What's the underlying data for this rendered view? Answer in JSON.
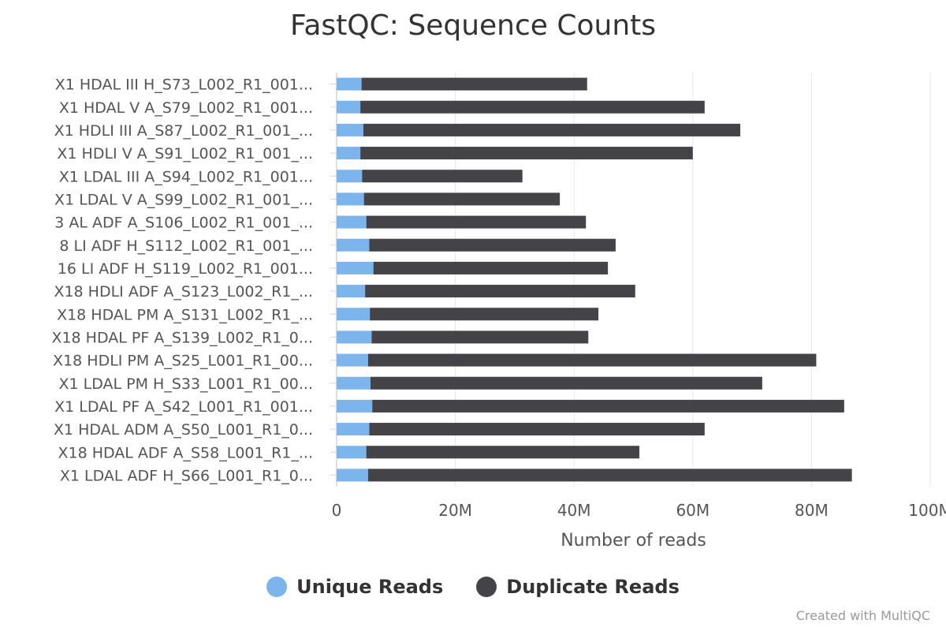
{
  "title": "FastQC: Sequence Counts",
  "credits": "Created with MultiQC",
  "colors": {
    "unique": "#7cb5ec",
    "duplicate": "#434348",
    "axis": "#ccd6eb",
    "grid": "#e6e6e6"
  },
  "chart_data": {
    "type": "bar",
    "orientation": "horizontal",
    "stacked": true,
    "title": "FastQC: Sequence Counts",
    "xlabel": "Number of reads",
    "ylabel": "",
    "xlim": [
      0,
      100000000
    ],
    "xticks": [
      0,
      20000000,
      40000000,
      60000000,
      80000000,
      100000000
    ],
    "xtick_labels": [
      "0",
      "20M",
      "40M",
      "60M",
      "80M",
      "100M"
    ],
    "grid": true,
    "legend_position": "bottom-center",
    "categories": [
      "X1 HDAL III H_S73_L002_R1_001...",
      "X1 HDAL V A_S79_L002_R1_001...",
      "X1 HDLI III A_S87_L002_R1_001_...",
      "X1 HDLI V A_S91_L002_R1_001_...",
      "X1 LDAL III A_S94_L002_R1_001...",
      "X1 LDAL V A_S99_L002_R1_001_...",
      "3 AL ADF A_S106_L002_R1_001_...",
      "8 LI ADF H_S112_L002_R1_001_...",
      "16 LI ADF H_S119_L002_R1_001...",
      "X18 HDLI ADF A_S123_L002_R1_...",
      "X18 HDAL PM A_S131_L002_R1_...",
      "X18 HDAL PF A_S139_L002_R1_0...",
      "X18 HDLI PM A_S25_L001_R1_00...",
      "X1 LDAL PM H_S33_L001_R1_00...",
      "X1 LDAL PF A_S42_L001_R1_001...",
      "X1 HDAL ADM A_S50_L001_R1_0...",
      "X18 HDAL ADF A_S58_L001_R1_...",
      "X1 LDAL ADF H_S66_L001_R1_0..."
    ],
    "series": [
      {
        "name": "Unique Reads",
        "values": [
          4200000.0,
          4000000.0,
          4500000.0,
          4000000.0,
          4300000.0,
          4600000.0,
          5000000.0,
          5500000.0,
          6200000.0,
          4800000.0,
          5600000.0,
          5900000.0,
          5300000.0,
          5700000.0,
          6000000.0,
          5500000.0,
          5000000.0,
          5300000.0
        ]
      },
      {
        "name": "Duplicate Reads",
        "values": [
          38000000.0,
          58000000.0,
          63500000.0,
          56000000.0,
          27000000.0,
          33000000.0,
          37000000.0,
          41500000.0,
          39500000.0,
          45500000.0,
          38500000.0,
          36500000.0,
          75500000.0,
          66000000.0,
          79500000.0,
          56500000.0,
          46000000.0,
          81500000.0
        ]
      }
    ],
    "note_on_rendering": ""
  }
}
